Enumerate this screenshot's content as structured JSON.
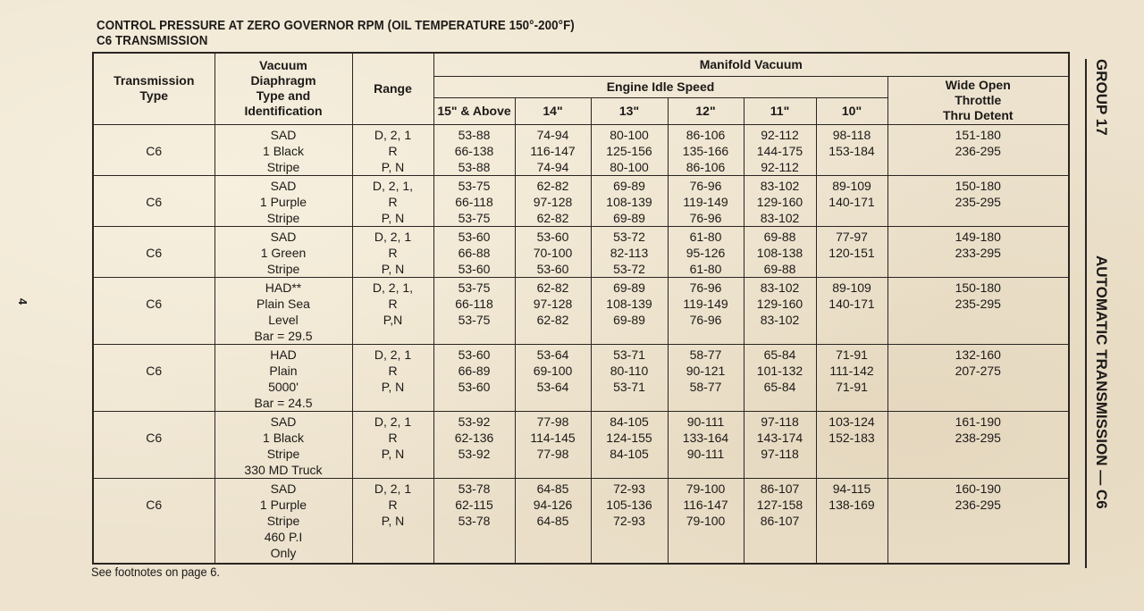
{
  "title": [
    "CONTROL PRESSURE AT ZERO GOVERNOR RPM (OIL TEMPERATURE 150°-200°F)",
    "C6 TRANSMISSION"
  ],
  "page_number": "4",
  "footnote": "See footnotes on page 6.",
  "side_labels": {
    "group": "GROUP 17",
    "subject": "AUTOMATIC TRANSMISSION — C6"
  },
  "headers": {
    "transmission_type": [
      "Transmission",
      "Type"
    ],
    "diaphragm": [
      "Vacuum",
      "Diaphragm",
      "Type and",
      "Identification"
    ],
    "range": "Range",
    "manifold_vacuum": "Manifold Vacuum",
    "engine_idle_speed": "Engine Idle Speed",
    "wide_open": [
      "Wide Open",
      "Throttle",
      "Thru Detent"
    ],
    "idle_columns": [
      "15\" & Above",
      "14\"",
      "13\"",
      "12\"",
      "11\"",
      "10\""
    ]
  },
  "rows": [
    {
      "type": "C6",
      "diaphragm": [
        "SAD",
        "1 Black",
        "Stripe"
      ],
      "range": [
        "D, 2, 1",
        "R",
        "P, N"
      ],
      "idle": [
        [
          "53-88",
          "66-138",
          "53-88"
        ],
        [
          "74-94",
          "116-147",
          "74-94"
        ],
        [
          "80-100",
          "125-156",
          "80-100"
        ],
        [
          "86-106",
          "135-166",
          "86-106"
        ],
        [
          "92-112",
          "144-175",
          "92-112"
        ],
        [
          "98-118",
          "153-184",
          ""
        ]
      ],
      "wot": [
        "151-180",
        "236-295"
      ]
    },
    {
      "type": "C6",
      "diaphragm": [
        "SAD",
        "1 Purple",
        "Stripe"
      ],
      "range": [
        "D, 2, 1,",
        "R",
        "P, N"
      ],
      "idle": [
        [
          "53-75",
          "66-118",
          "53-75"
        ],
        [
          "62-82",
          "97-128",
          "62-82"
        ],
        [
          "69-89",
          "108-139",
          "69-89"
        ],
        [
          "76-96",
          "119-149",
          "76-96"
        ],
        [
          "83-102",
          "129-160",
          "83-102"
        ],
        [
          "89-109",
          "140-171",
          ""
        ]
      ],
      "wot": [
        "150-180",
        "235-295"
      ]
    },
    {
      "type": "C6",
      "diaphragm": [
        "SAD",
        "1 Green",
        "Stripe"
      ],
      "range": [
        "D, 2, 1",
        "R",
        "P, N"
      ],
      "idle": [
        [
          "53-60",
          "66-88",
          "53-60"
        ],
        [
          "53-60",
          "70-100",
          "53-60"
        ],
        [
          "53-72",
          "82-113",
          "53-72"
        ],
        [
          "61-80",
          "95-126",
          "61-80"
        ],
        [
          "69-88",
          "108-138",
          "69-88"
        ],
        [
          "77-97",
          "120-151",
          ""
        ]
      ],
      "wot": [
        "149-180",
        "233-295"
      ]
    },
    {
      "type": "C6",
      "diaphragm": [
        "HAD**",
        "Plain Sea",
        "Level",
        "Bar = 29.5"
      ],
      "range": [
        "D, 2, 1,",
        "R",
        "P,N"
      ],
      "idle": [
        [
          "53-75",
          "66-118",
          "53-75"
        ],
        [
          "62-82",
          "97-128",
          "62-82"
        ],
        [
          "69-89",
          "108-139",
          "69-89"
        ],
        [
          "76-96",
          "119-149",
          "76-96"
        ],
        [
          "83-102",
          "129-160",
          "83-102"
        ],
        [
          "89-109",
          "140-171",
          ""
        ]
      ],
      "wot": [
        "150-180",
        "235-295"
      ]
    },
    {
      "type": "C6",
      "diaphragm": [
        "HAD",
        "Plain",
        "5000'",
        "Bar = 24.5"
      ],
      "range": [
        "D, 2, 1",
        "R",
        "P, N"
      ],
      "idle": [
        [
          "53-60",
          "66-89",
          "53-60"
        ],
        [
          "53-64",
          "69-100",
          "53-64"
        ],
        [
          "53-71",
          "80-110",
          "53-71"
        ],
        [
          "58-77",
          "90-121",
          "58-77"
        ],
        [
          "65-84",
          "101-132",
          "65-84"
        ],
        [
          "71-91",
          "111-142",
          "71-91"
        ]
      ],
      "wot": [
        "132-160",
        "207-275"
      ]
    },
    {
      "type": "C6",
      "diaphragm": [
        "SAD",
        "1 Black",
        "Stripe",
        "330 MD Truck"
      ],
      "range": [
        "D, 2, 1",
        "R",
        "P, N"
      ],
      "idle": [
        [
          "53-92",
          "62-136",
          "53-92"
        ],
        [
          "77-98",
          "114-145",
          "77-98"
        ],
        [
          "84-105",
          "124-155",
          "84-105"
        ],
        [
          "90-111",
          "133-164",
          "90-111"
        ],
        [
          "97-118",
          "143-174",
          "97-118"
        ],
        [
          "103-124",
          "152-183",
          ""
        ]
      ],
      "wot": [
        "161-190",
        "238-295"
      ]
    },
    {
      "type": "C6",
      "diaphragm": [
        "SAD",
        "1 Purple",
        "Stripe",
        "460 P.I",
        "Only"
      ],
      "range": [
        "D, 2, 1",
        "R",
        "P, N"
      ],
      "idle": [
        [
          "53-78",
          "62-115",
          "53-78"
        ],
        [
          "64-85",
          "94-126",
          "64-85"
        ],
        [
          "72-93",
          "105-136",
          "72-93"
        ],
        [
          "79-100",
          "116-147",
          "79-100"
        ],
        [
          "86-107",
          "127-158",
          "86-107"
        ],
        [
          "94-115",
          "138-169",
          ""
        ]
      ],
      "wot": [
        "160-190",
        "236-295"
      ]
    }
  ]
}
